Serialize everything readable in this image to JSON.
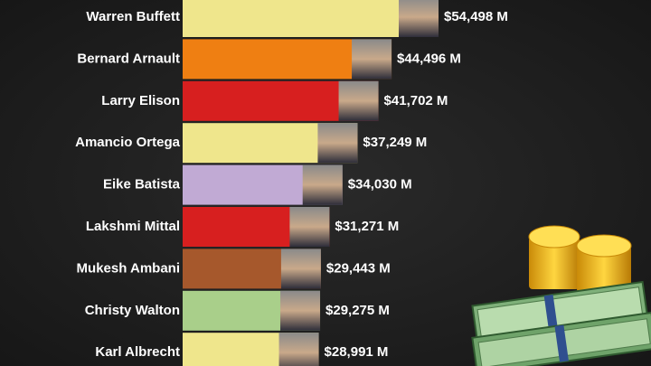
{
  "chart_data": {
    "type": "bar",
    "orientation": "horizontal",
    "categories": [
      "Warren Buffett",
      "Bernard Arnault",
      "Larry Elison",
      "Amancio Ortega",
      "Eike Batista",
      "Lakshmi Mittal",
      "Mukesh Ambani",
      "Christy Walton",
      "Karl Albrecht"
    ],
    "values": [
      54498,
      44496,
      41702,
      37249,
      34030,
      31271,
      29443,
      29275,
      28991
    ],
    "value_labels": [
      "$54,498 M",
      "$44,496 M",
      "$41,702 M",
      "$37,249 M",
      "$34,030 M",
      "$31,271 M",
      "$29,443 M",
      "$29,275 M",
      "$28,991 M"
    ],
    "colors": [
      "#efe68c",
      "#ef7f12",
      "#d71f1f",
      "#efe68c",
      "#c1aad4",
      "#d71f1f",
      "#a6582c",
      "#a9cf8a",
      "#efe68c"
    ]
  }
}
